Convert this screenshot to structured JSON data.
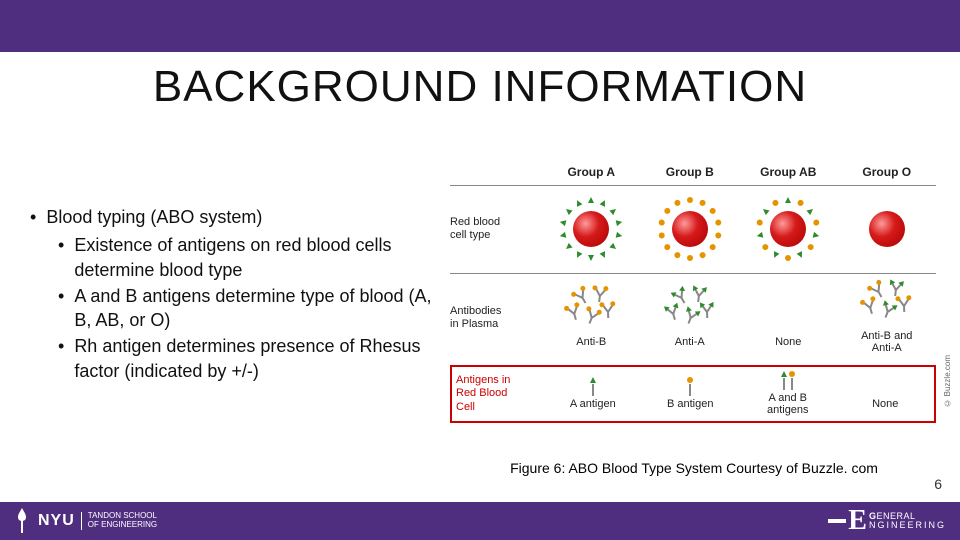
{
  "colors": {
    "brand_purple": "#4f2d7f",
    "highlight_red": "#cc0000",
    "rbc_gradient": [
      "#ff9a9a",
      "#d61a1a",
      "#a80000"
    ],
    "antigen_a": "#2e8b2e",
    "antigen_b": "#e59400",
    "rule_gray": "#888888",
    "text": "#111111"
  },
  "typography": {
    "title_fontsize": 44,
    "body_fontsize": 18,
    "chart_header_fontsize": 12,
    "chart_label_fontsize": 11,
    "caption_fontsize": 14
  },
  "title": "BACKGROUND INFORMATION",
  "bullets": {
    "main": "Blood typing (ABO system)",
    "subs": [
      "Existence of antigens on red blood cells determine blood type",
      "A and B antigens determine type of blood (A, B, AB, or O)",
      "Rh antigen determines presence of Rhesus factor (indicated by +/-)"
    ]
  },
  "chart": {
    "type": "table",
    "columns": [
      "Group A",
      "Group B",
      "Group AB",
      "Group O"
    ],
    "rows": [
      {
        "label": "Red blood\ncell type",
        "kind": "rbc",
        "cells": [
          {
            "antigens": [
              "A"
            ]
          },
          {
            "antigens": [
              "B"
            ]
          },
          {
            "antigens": [
              "A",
              "B"
            ]
          },
          {
            "antigens": []
          }
        ]
      },
      {
        "label": "Antibodies\nin Plasma",
        "kind": "antibody",
        "cells": [
          {
            "label": "Anti-B",
            "tips": [
              "B"
            ]
          },
          {
            "label": "Anti-A",
            "tips": [
              "A"
            ]
          },
          {
            "label": "None",
            "tips": []
          },
          {
            "label": "Anti-B and\nAnti-A",
            "tips": [
              "A",
              "B"
            ]
          }
        ]
      },
      {
        "label": "Antigens in\nRed Blood\nCell",
        "kind": "antigen",
        "highlighted": true,
        "cells": [
          {
            "label": "A antigen",
            "sticks": [
              "A"
            ]
          },
          {
            "label": "B antigen",
            "sticks": [
              "B"
            ]
          },
          {
            "label": "A and B\nantigens",
            "sticks": [
              "A",
              "B"
            ]
          },
          {
            "label": "None",
            "sticks": []
          }
        ]
      }
    ],
    "copyright": "© Buzzle.com"
  },
  "caption": "Figure 6: ABO Blood Type System Courtesy of Buzzle. com",
  "page_number": "6",
  "footer": {
    "nyu": "NYU",
    "nyu_sub": "TANDON SCHOOL\nOF ENGINEERING",
    "ge_upper": "ENERAL",
    "ge_lower": "NGINEERING"
  }
}
